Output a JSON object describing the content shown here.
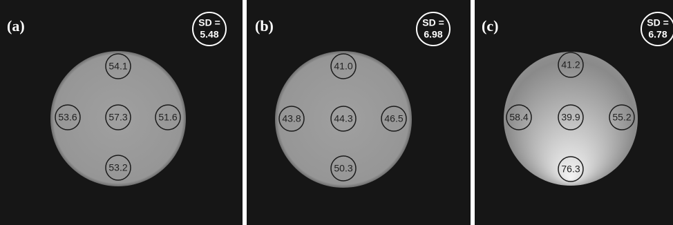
{
  "panels": [
    {
      "label": "(a)",
      "sd_label": "SD =",
      "sd_value": "5.48",
      "rois": [
        "54.1",
        "53.6",
        "57.3",
        "51.6",
        "53.2"
      ]
    },
    {
      "label": "(b)",
      "sd_label": "SD =",
      "sd_value": "6.98",
      "rois": [
        "41.0",
        "43.8",
        "44.3",
        "46.5",
        "50.3"
      ]
    },
    {
      "label": "(c)",
      "sd_label": "SD =",
      "sd_value": "6.78",
      "rois": [
        "41.2",
        "58.4",
        "39.9",
        "55.2",
        "76.3"
      ]
    }
  ]
}
